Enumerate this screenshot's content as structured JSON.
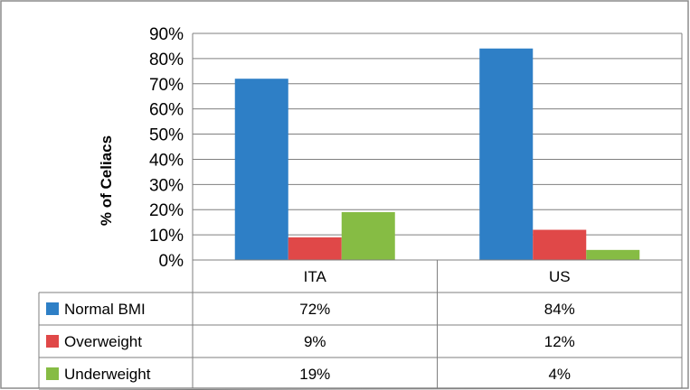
{
  "chart_data": {
    "type": "bar",
    "categories": [
      "ITA",
      "US"
    ],
    "series": [
      {
        "name": "Normal BMI",
        "color": "#2e7fc6",
        "values": [
          72,
          84
        ],
        "labels": [
          "72%",
          "84%"
        ]
      },
      {
        "name": "Overweight",
        "color": "#e04848",
        "values": [
          9,
          12
        ],
        "labels": [
          "9%",
          "12%"
        ]
      },
      {
        "name": "Underweight",
        "color": "#86bc44",
        "values": [
          19,
          4
        ],
        "labels": [
          "19%",
          "4%"
        ]
      }
    ],
    "ylabel": "% of Celiacs",
    "ylim": [
      0,
      90
    ],
    "yticks": [
      "0%",
      "10%",
      "20%",
      "30%",
      "40%",
      "50%",
      "60%",
      "70%",
      "80%",
      "90%"
    ],
    "grid": true,
    "legend": "data-table"
  }
}
